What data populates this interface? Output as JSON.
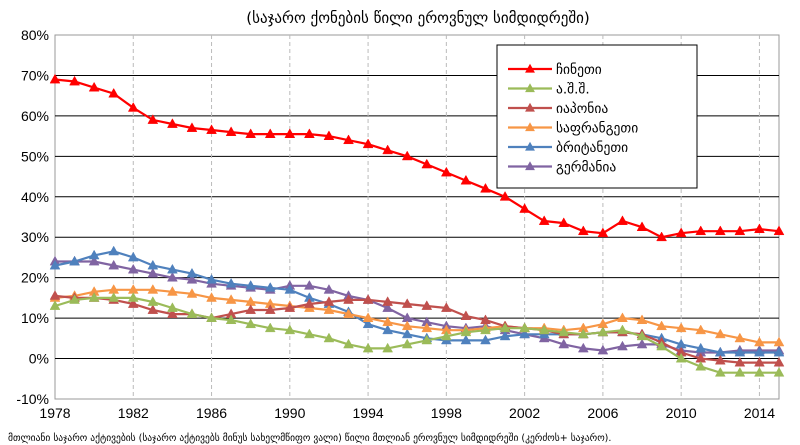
{
  "header": {
    "subtitle": "(საჯარო ქონების წილი ეროვნულ სიმდიდრეში)"
  },
  "footnote": "მთლიანი საჯარო აქტივების (საჯარო აქტივებს მინუს სახელმწიფო ვალი) წილი მთლიან ეროვნულ სიმდიდრეში (კერძოს+ საჯარო).",
  "chart_data": {
    "type": "line",
    "xlim": [
      1978,
      2015
    ],
    "ylim": [
      -10,
      80
    ],
    "x_ticks": [
      "1978",
      "1982",
      "1986",
      "1990",
      "1994",
      "1998",
      "2002",
      "2006",
      "2010",
      "2014"
    ],
    "y_ticks": [
      "80%",
      "70%",
      "60%",
      "50%",
      "40%",
      "30%",
      "20%",
      "10%",
      "0%",
      "-10%"
    ],
    "grid": true,
    "legend_position": "top-right",
    "x": [
      1978,
      1979,
      1980,
      1981,
      1982,
      1983,
      1984,
      1985,
      1986,
      1987,
      1988,
      1989,
      1990,
      1991,
      1992,
      1993,
      1994,
      1995,
      1996,
      1997,
      1998,
      1999,
      2000,
      2001,
      2002,
      2003,
      2004,
      2005,
      2006,
      2007,
      2008,
      2009,
      2010,
      2011,
      2012,
      2013,
      2014,
      2015
    ],
    "series": [
      {
        "name": "ჩინეთი",
        "color": "#ff0000",
        "values": [
          69,
          68.5,
          67,
          65.5,
          62,
          59,
          58,
          57,
          56.5,
          56,
          55.5,
          55.5,
          55.5,
          55.5,
          55,
          54,
          53,
          51.5,
          50,
          48,
          46,
          44,
          42,
          40,
          37,
          34,
          33.5,
          31.5,
          31,
          34,
          32.5,
          30,
          31,
          31.5,
          31.5,
          31.5,
          32,
          31.5
        ]
      },
      {
        "name": "ა.შ.შ.",
        "color": "#9bbb59",
        "values": [
          13,
          14.5,
          15,
          15,
          15,
          14,
          12.5,
          11,
          10,
          9.5,
          8.5,
          7.5,
          7,
          6,
          5,
          3.5,
          2.5,
          2.5,
          3.5,
          4.5,
          5.5,
          6.5,
          7,
          7.5,
          7.5,
          7,
          6.5,
          6,
          6.5,
          7,
          5.5,
          3,
          0,
          -2,
          -3.5,
          -3.5,
          -3.5,
          -3.5
        ]
      },
      {
        "name": "იაპონია",
        "color": "#c0504d",
        "values": [
          15.5,
          15,
          15,
          14.5,
          13.5,
          12,
          11,
          11,
          10,
          11,
          12,
          12,
          12.5,
          13.5,
          14,
          14.5,
          14.5,
          14,
          13.5,
          13,
          12.5,
          10.5,
          9.5,
          8,
          7.5,
          7,
          6,
          6,
          6.5,
          6.5,
          6,
          4,
          1.5,
          0,
          -0.5,
          -1,
          -1,
          -1
        ]
      },
      {
        "name": "საფრანგეთი",
        "color": "#f79646",
        "values": [
          15,
          15.5,
          16.5,
          17,
          17,
          17,
          16.5,
          16,
          15,
          14.5,
          14,
          13.5,
          13,
          12.5,
          12,
          11,
          10,
          9,
          8,
          7.5,
          7,
          7,
          7.5,
          8,
          7.5,
          7.5,
          7,
          7.5,
          8.5,
          10,
          9.5,
          8,
          7.5,
          7,
          6,
          5,
          4,
          4
        ]
      },
      {
        "name": "ბრიტანეთი",
        "color": "#4f81bd",
        "values": [
          23,
          24,
          25.5,
          26.5,
          25,
          23,
          22,
          21,
          19.5,
          18.5,
          18,
          17.5,
          17,
          15,
          13.5,
          11.5,
          8.5,
          7,
          6,
          5,
          4.5,
          4.5,
          4.5,
          5.5,
          6,
          6,
          6,
          6,
          6.5,
          6.5,
          6,
          5,
          3.5,
          2.5,
          1.5,
          1.5,
          1.5,
          1.5
        ]
      },
      {
        "name": "გერმანია",
        "color": "#8064a2",
        "values": [
          24,
          24,
          24,
          23,
          22,
          21,
          20,
          19.5,
          18.5,
          18,
          17.5,
          17,
          18,
          18,
          17,
          15.5,
          14.5,
          12.5,
          10,
          9,
          8,
          7.5,
          8,
          7,
          6,
          5,
          3.5,
          2.5,
          2,
          3,
          3.5,
          3.5,
          2,
          1.5,
          1.5,
          2,
          2,
          2
        ]
      }
    ]
  }
}
